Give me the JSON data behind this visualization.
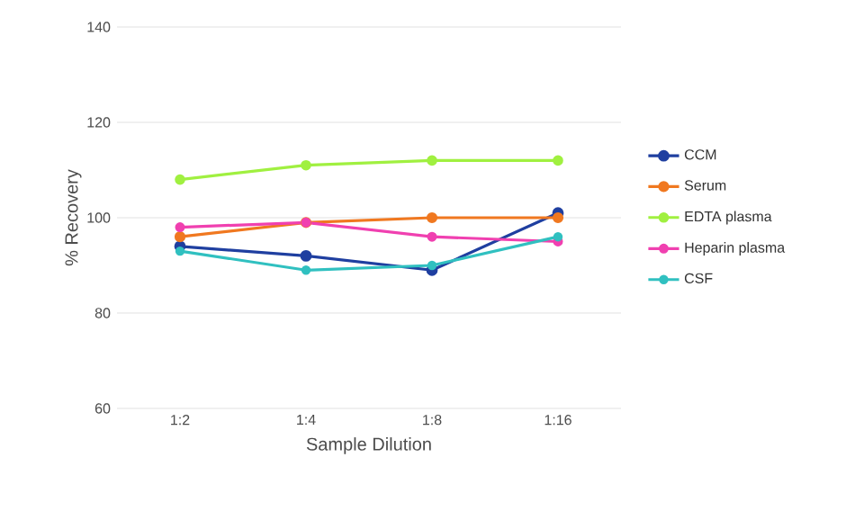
{
  "chart_data": {
    "type": "line",
    "xlabel": "Sample Dilution",
    "ylabel": "% Recovery",
    "categories": [
      "1:2",
      "1:4",
      "1:8",
      "1:16"
    ],
    "series": [
      {
        "name": "CCM",
        "color": "#1f3fa0",
        "values": [
          94,
          92,
          89,
          101
        ]
      },
      {
        "name": "Serum",
        "color": "#f07820",
        "values": [
          96,
          99,
          100,
          100
        ]
      },
      {
        "name": "EDTA plasma",
        "color": "#a0f040",
        "values": [
          108,
          111,
          112,
          112
        ]
      },
      {
        "name": "Heparin plasma",
        "color": "#f040b0",
        "values": [
          98,
          99,
          96,
          95
        ]
      },
      {
        "name": "CSF",
        "color": "#30c0c0",
        "values": [
          93,
          89,
          90,
          96
        ]
      }
    ],
    "ylim": [
      60,
      140
    ],
    "yticks": [
      60,
      80,
      100,
      120,
      140
    ],
    "grid": "y",
    "legend": "right",
    "marker": "circle",
    "line_style": "solid"
  }
}
